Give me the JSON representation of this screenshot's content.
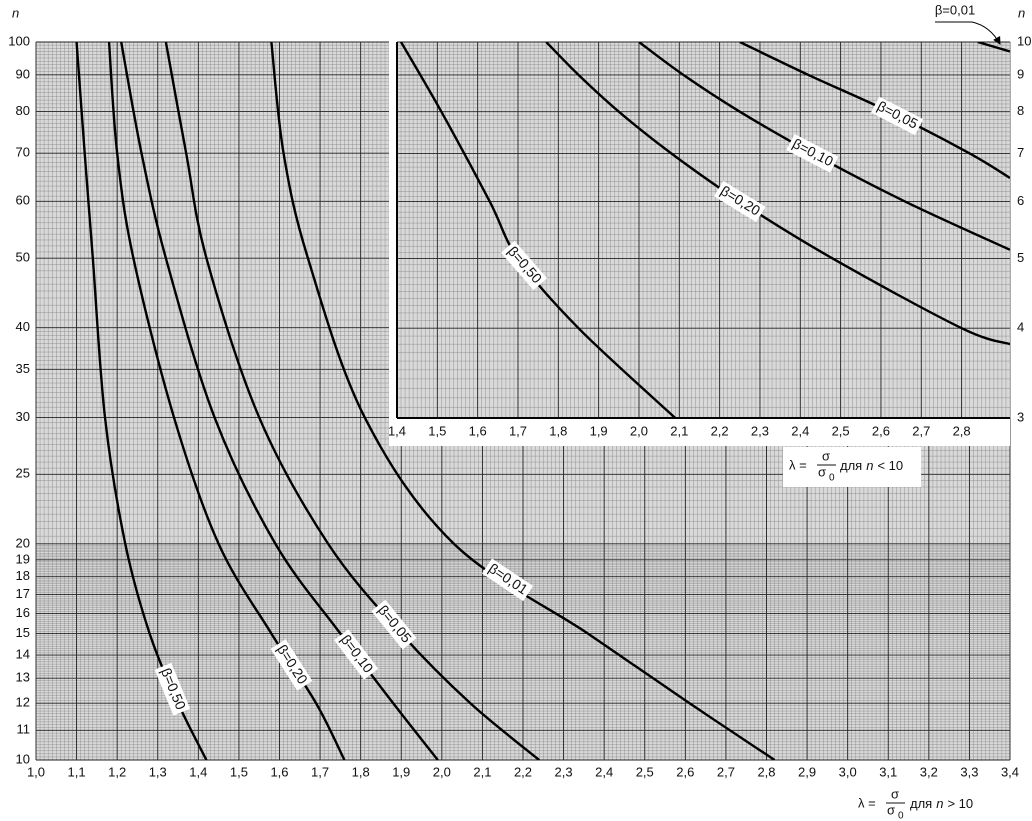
{
  "chart_data": [
    {
      "type": "line",
      "log_y": true,
      "grid": true,
      "y_label": "n",
      "x_label": {
        "lambda": "λ =",
        "sigma": "σ",
        "sigma0": "σ",
        "sub": "0",
        "for": "для",
        "var": "n",
        "cond": "> 10"
      },
      "xlim": [
        1.0,
        3.4
      ],
      "ylim": [
        10,
        100
      ],
      "xticks": [
        {
          "value": 1.0,
          "label": "1,0"
        },
        {
          "value": 1.1,
          "label": "1,1"
        },
        {
          "value": 1.2,
          "label": "1,2"
        },
        {
          "value": 1.3,
          "label": "1,3"
        },
        {
          "value": 1.4,
          "label": "1,4"
        },
        {
          "value": 1.5,
          "label": "1,5"
        },
        {
          "value": 1.6,
          "label": "1,6"
        },
        {
          "value": 1.7,
          "label": "1,7"
        },
        {
          "value": 1.8,
          "label": "1,8"
        },
        {
          "value": 1.9,
          "label": "1,9"
        },
        {
          "value": 2.0,
          "label": "2,0"
        },
        {
          "value": 2.1,
          "label": "2,1"
        },
        {
          "value": 2.2,
          "label": "2,2"
        },
        {
          "value": 2.3,
          "label": "2,3"
        },
        {
          "value": 2.4,
          "label": "2,4"
        },
        {
          "value": 2.5,
          "label": "2,5"
        },
        {
          "value": 2.6,
          "label": "2,6"
        },
        {
          "value": 2.7,
          "label": "2,7"
        },
        {
          "value": 2.8,
          "label": "2,8"
        },
        {
          "value": 2.9,
          "label": "2,9"
        },
        {
          "value": 3.0,
          "label": "3,0"
        },
        {
          "value": 3.1,
          "label": "3,1"
        },
        {
          "value": 3.2,
          "label": "3,2"
        },
        {
          "value": 3.3,
          "label": "3,3"
        },
        {
          "value": 3.4,
          "label": "3,4"
        }
      ],
      "yticks": [
        10,
        11,
        12,
        13,
        14,
        15,
        16,
        17,
        18,
        19,
        20,
        25,
        30,
        35,
        40,
        50,
        60,
        70,
        80,
        90,
        100
      ],
      "series": [
        {
          "name": "β=0,50",
          "color": "#000000",
          "x": [
            1.1,
            1.12,
            1.14,
            1.17,
            1.22,
            1.28,
            1.35,
            1.42
          ],
          "values": [
            100,
            70,
            50,
            30,
            20,
            15,
            12,
            10
          ]
        },
        {
          "name": "β=0,20",
          "color": "#000000",
          "x": [
            1.18,
            1.2,
            1.24,
            1.34,
            1.45,
            1.58,
            1.69,
            1.76
          ],
          "values": [
            100,
            70,
            50,
            30,
            20,
            15,
            12,
            10
          ]
        },
        {
          "name": "β=0,10",
          "color": "#000000",
          "x": [
            1.21,
            1.26,
            1.32,
            1.44,
            1.59,
            1.75,
            1.88,
            1.99
          ],
          "values": [
            100,
            70,
            50,
            30,
            20,
            15,
            12,
            10
          ]
        },
        {
          "name": "β=0,05",
          "color": "#000000",
          "x": [
            1.32,
            1.37,
            1.42,
            1.55,
            1.72,
            1.9,
            2.07,
            2.24
          ],
          "values": [
            100,
            70,
            50,
            30,
            20,
            15,
            12,
            10
          ]
        },
        {
          "name": "β=0,01",
          "color": "#000000",
          "x": [
            1.58,
            1.61,
            1.67,
            1.81,
            2.03,
            2.36,
            2.61,
            2.82
          ],
          "values": [
            100,
            70,
            50,
            30,
            20,
            15,
            12,
            10
          ]
        }
      ]
    },
    {
      "type": "line",
      "log_y": true,
      "grid": true,
      "y_label": "n",
      "x_label": {
        "lambda": "λ =",
        "sigma": "σ",
        "sigma0": "σ",
        "sub": "0",
        "for": "для",
        "var": "n",
        "cond": "< 10"
      },
      "xlim": [
        1.4,
        2.92
      ],
      "ylim": [
        3,
        10
      ],
      "xticks": [
        {
          "value": 1.4,
          "label": "1,4"
        },
        {
          "value": 1.5,
          "label": "1,5"
        },
        {
          "value": 1.6,
          "label": "1,6"
        },
        {
          "value": 1.7,
          "label": "1,7"
        },
        {
          "value": 1.8,
          "label": "1,8"
        },
        {
          "value": 1.9,
          "label": "1,9"
        },
        {
          "value": 2.0,
          "label": "2,0"
        },
        {
          "value": 2.1,
          "label": "2,1"
        },
        {
          "value": 2.2,
          "label": "2,2"
        },
        {
          "value": 2.3,
          "label": "2,3"
        },
        {
          "value": 2.4,
          "label": "2,4"
        },
        {
          "value": 2.5,
          "label": "2,5"
        },
        {
          "value": 2.6,
          "label": "2,6"
        },
        {
          "value": 2.7,
          "label": "2,7"
        },
        {
          "value": 2.8,
          "label": "2,8"
        }
      ],
      "yticks": [
        3,
        4,
        5,
        6,
        7,
        8,
        9,
        10
      ],
      "series": [
        {
          "name": "β=0,50",
          "color": "#000000",
          "x": [
            1.41,
            1.51,
            1.63,
            1.7,
            1.85,
            2.09
          ],
          "values": [
            10,
            8,
            6,
            5,
            4,
            3
          ]
        },
        {
          "name": "β=0,20",
          "color": "#000000",
          "x": [
            1.77,
            1.85,
            1.95,
            2.08,
            2.25,
            2.48,
            2.8,
            2.92
          ],
          "values": [
            10,
            9,
            8,
            7,
            6,
            5,
            4,
            3.8
          ]
        },
        {
          "name": "β=0,10",
          "color": "#000000",
          "x": [
            2.0,
            2.11,
            2.25,
            2.43,
            2.66,
            2.92
          ],
          "values": [
            10,
            9,
            8,
            7,
            6,
            5.14
          ]
        },
        {
          "name": "β=0,05",
          "color": "#000000",
          "x": [
            2.25,
            2.42,
            2.62,
            2.82,
            2.92
          ],
          "values": [
            10,
            9,
            8,
            7,
            6.47
          ]
        },
        {
          "name": "β=0,01",
          "color": "#000000",
          "x": [
            2.84,
            2.92
          ],
          "values": [
            10,
            9.7
          ]
        }
      ]
    }
  ]
}
